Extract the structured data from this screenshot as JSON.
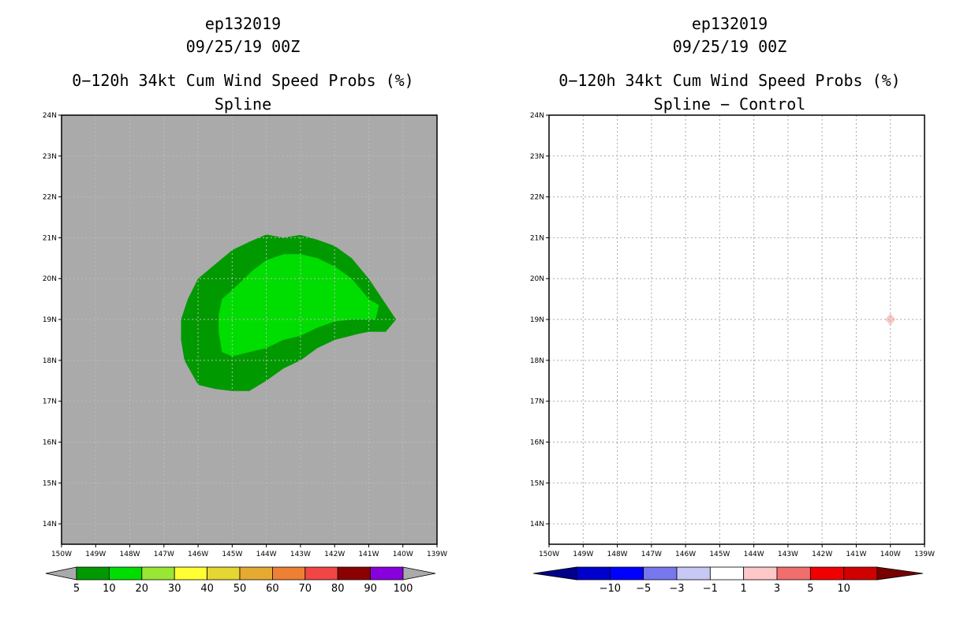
{
  "chart_data": [
    {
      "type": "contour-map",
      "storm_id": "ep132019",
      "datetime": "09/25/19 00Z",
      "title": "0−120h 34kt Cum Wind Speed Probs (%)",
      "subtitle": "Spline",
      "xlim": [
        -150,
        -139
      ],
      "ylim": [
        13.5,
        24
      ],
      "x_ticks": [
        "150W",
        "149W",
        "148W",
        "147W",
        "146W",
        "145W",
        "144W",
        "143W",
        "142W",
        "141W",
        "140W",
        "139W"
      ],
      "y_ticks": [
        "14N",
        "15N",
        "16N",
        "17N",
        "18N",
        "19N",
        "20N",
        "21N",
        "22N",
        "23N",
        "24N"
      ],
      "background_color": "#aaaaaa",
      "contours": [
        {
          "level": "5-10",
          "color": "#009900",
          "points": [
            [
              -145.5,
              17.3
            ],
            [
              -146,
              17.4
            ],
            [
              -146.4,
              18
            ],
            [
              -146.5,
              18.5
            ],
            [
              -146.5,
              19
            ],
            [
              -146.3,
              19.5
            ],
            [
              -146,
              20
            ],
            [
              -145,
              20.7
            ],
            [
              -144.5,
              20.9
            ],
            [
              -144,
              21.08
            ],
            [
              -143.5,
              21
            ],
            [
              -143,
              21.07
            ],
            [
              -142.5,
              20.95
            ],
            [
              -142,
              20.8
            ],
            [
              -141.5,
              20.5
            ],
            [
              -141,
              20
            ],
            [
              -140.6,
              19.5
            ],
            [
              -140.2,
              19
            ],
            [
              -140.5,
              18.7
            ],
            [
              -141,
              18.7
            ],
            [
              -141.3,
              18.65
            ],
            [
              -142,
              18.5
            ],
            [
              -142.5,
              18.3
            ],
            [
              -143,
              18
            ],
            [
              -143.5,
              17.8
            ],
            [
              -144,
              17.5
            ],
            [
              -144.5,
              17.25
            ],
            [
              -145,
              17.25
            ]
          ]
        },
        {
          "level": "10-20",
          "color": "#00dd00",
          "points": [
            [
              -145,
              18.1
            ],
            [
              -145.3,
              18.2
            ],
            [
              -145.4,
              18.7
            ],
            [
              -145.4,
              19.1
            ],
            [
              -145.3,
              19.5
            ],
            [
              -144.9,
              19.8
            ],
            [
              -144.4,
              20.2
            ],
            [
              -144,
              20.45
            ],
            [
              -143.5,
              20.6
            ],
            [
              -143,
              20.6
            ],
            [
              -142.5,
              20.5
            ],
            [
              -142,
              20.3
            ],
            [
              -141.5,
              20
            ],
            [
              -141,
              19.5
            ],
            [
              -140.7,
              19.35
            ],
            [
              -140.8,
              19
            ],
            [
              -141.5,
              19
            ],
            [
              -142,
              18.95
            ],
            [
              -142.5,
              18.8
            ],
            [
              -143,
              18.6
            ],
            [
              -143.5,
              18.5
            ],
            [
              -144,
              18.3
            ],
            [
              -144.5,
              18.2
            ]
          ]
        }
      ],
      "colorbar": {
        "labels": [
          "5",
          "10",
          "20",
          "30",
          "40",
          "50",
          "60",
          "70",
          "80",
          "90",
          "100"
        ],
        "colors": [
          "#009900",
          "#00dd00",
          "#99e633",
          "#ffff33",
          "#e6d633",
          "#e6aa33",
          "#ee8033",
          "#f24545",
          "#8b0000",
          "#8800dd"
        ],
        "end_colors": [
          "#aaaaaa",
          "#aaaaaa"
        ]
      }
    },
    {
      "type": "contour-map",
      "storm_id": "ep132019",
      "datetime": "09/25/19 00Z",
      "title": "0−120h 34kt Cum Wind Speed Probs (%)",
      "subtitle": "Spline − Control",
      "xlim": [
        -150,
        -139
      ],
      "ylim": [
        13.5,
        24
      ],
      "x_ticks": [
        "150W",
        "149W",
        "148W",
        "147W",
        "146W",
        "145W",
        "144W",
        "143W",
        "142W",
        "141W",
        "140W",
        "139W"
      ],
      "y_ticks": [
        "14N",
        "15N",
        "16N",
        "17N",
        "18N",
        "19N",
        "20N",
        "21N",
        "22N",
        "23N",
        "24N"
      ],
      "grid": true,
      "background_color": "#ffffff",
      "contours": [
        {
          "level": "1-3",
          "color": "#ffc8c8",
          "points": [
            [
              -140,
              19.15
            ],
            [
              -139.85,
              19
            ],
            [
              -140,
              18.85
            ],
            [
              -140.15,
              19
            ]
          ]
        }
      ],
      "colorbar": {
        "labels": [
          "−10",
          "−5",
          "−3",
          "−1",
          "1",
          "3",
          "5",
          "10"
        ],
        "colors": [
          "#0000cc",
          "#0000ff",
          "#7777ee",
          "#c8c8f5",
          "#ffffff",
          "#ffc8c8",
          "#f26e6e",
          "#f00000",
          "#d00000"
        ],
        "end_colors": [
          "#000088",
          "#770000"
        ]
      }
    }
  ]
}
